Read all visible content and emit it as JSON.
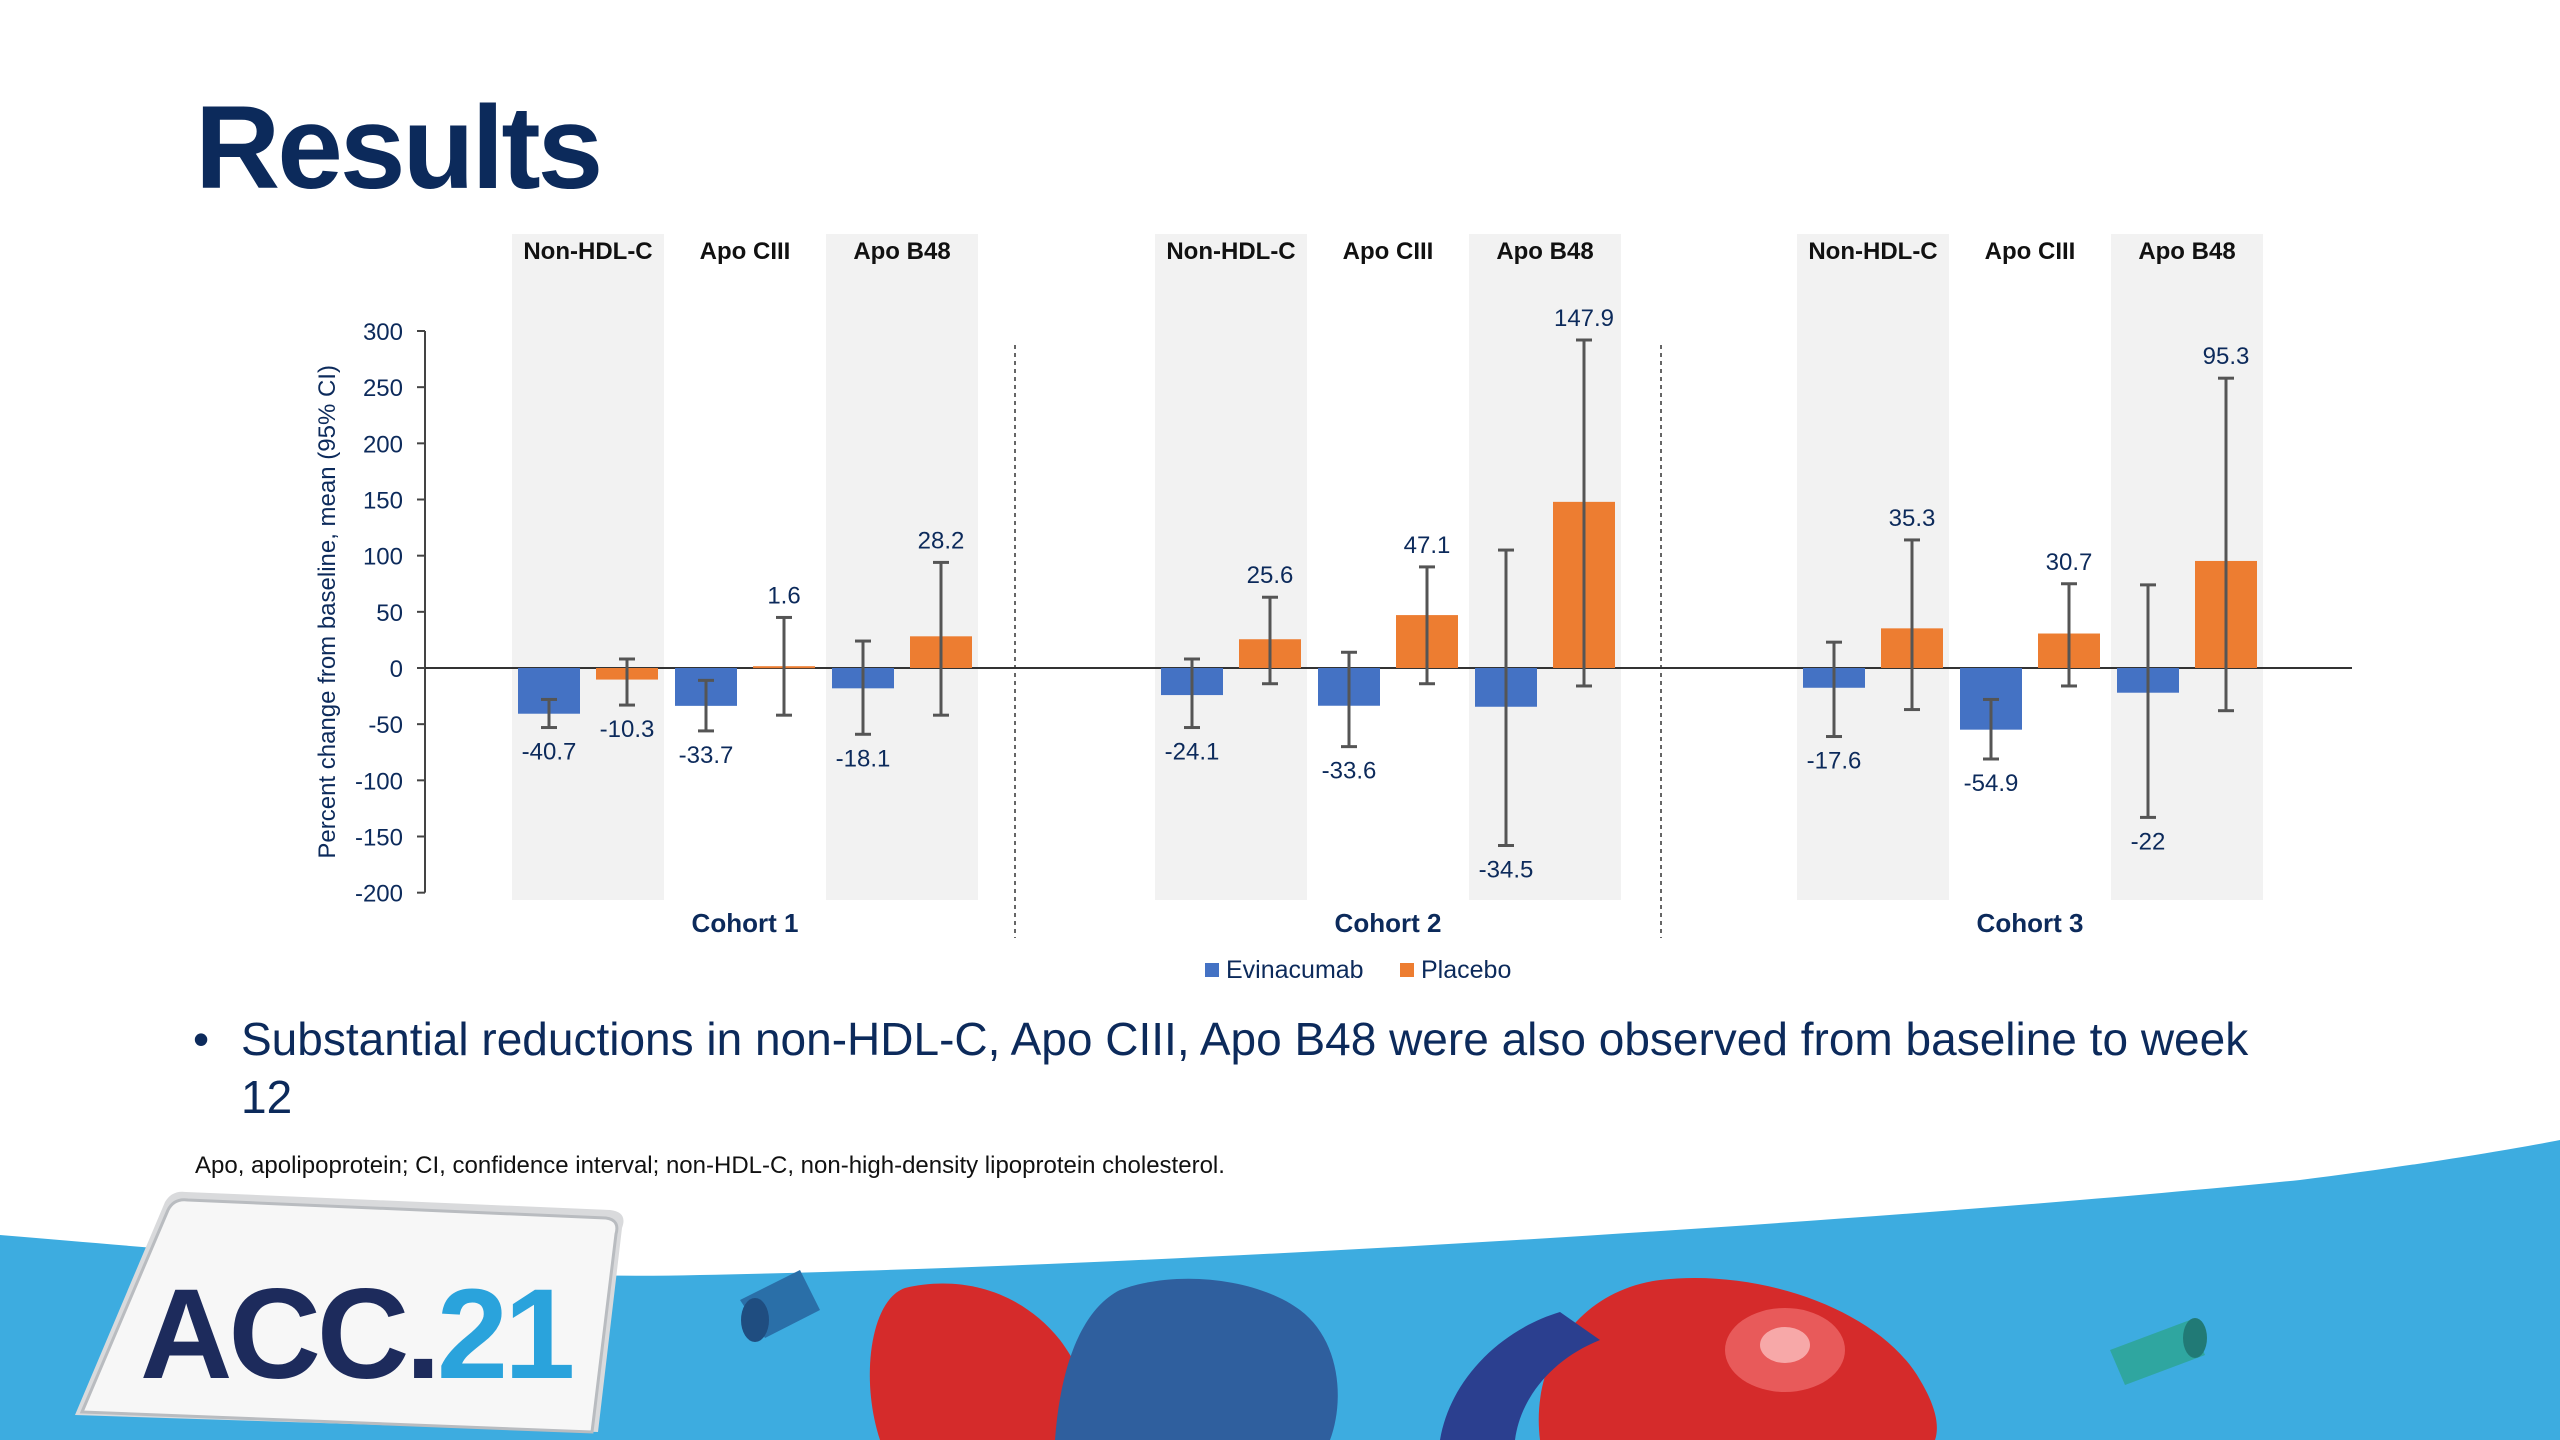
{
  "title": "Results",
  "chart_data": {
    "type": "bar",
    "ylabel": "Percent change from baseline, mean (95% CI)",
    "ylim": [
      -200,
      300
    ],
    "yticks": [
      300,
      250,
      200,
      150,
      100,
      50,
      0,
      -50,
      -100,
      -150,
      -200
    ],
    "legend": [
      {
        "name": "Evinacumab",
        "color": "#4472c4"
      },
      {
        "name": "Placebo",
        "color": "#ed7d31"
      }
    ],
    "cohorts": [
      {
        "name": "Cohort 1",
        "categories": [
          "Non-HDL-C",
          "Apo CIII",
          "Apo B48"
        ],
        "evinacumab": [
          -40.7,
          -33.7,
          -18.1
        ],
        "evinacumab_labels": [
          "-40.7",
          "-33.7",
          "-18.1"
        ],
        "evinacumab_ci": [
          [
            -53,
            -28
          ],
          [
            -56,
            -11
          ],
          [
            -59,
            24
          ]
        ],
        "placebo": [
          -10.3,
          1.6,
          28.2
        ],
        "placebo_labels": [
          "-10.3",
          "1.6",
          "28.2"
        ],
        "placebo_ci": [
          [
            -33,
            8
          ],
          [
            -42,
            45
          ],
          [
            -42,
            94
          ]
        ]
      },
      {
        "name": "Cohort 2",
        "categories": [
          "Non-HDL-C",
          "Apo CIII",
          "Apo B48"
        ],
        "evinacumab": [
          -24.1,
          -33.6,
          -34.5
        ],
        "evinacumab_labels": [
          "-24.1",
          "-33.6",
          "-34.5"
        ],
        "evinacumab_ci": [
          [
            -53,
            8
          ],
          [
            -70,
            14
          ],
          [
            -158,
            105
          ]
        ],
        "placebo": [
          25.6,
          47.1,
          147.9
        ],
        "placebo_labels": [
          "25.6",
          "47.1",
          "147.9"
        ],
        "placebo_ci": [
          [
            -14,
            63
          ],
          [
            -14,
            90
          ],
          [
            -16,
            292
          ]
        ]
      },
      {
        "name": "Cohort 3",
        "categories": [
          "Non-HDL-C",
          "Apo CIII",
          "Apo B48"
        ],
        "evinacumab": [
          -17.6,
          -54.9,
          -22.0
        ],
        "evinacumab_labels": [
          "-17.6",
          "-54.9",
          "-22"
        ],
        "evinacumab_ci": [
          [
            -61,
            23
          ],
          [
            -81,
            -28
          ],
          [
            -133,
            74
          ]
        ],
        "placebo": [
          35.3,
          30.7,
          95.3
        ],
        "placebo_labels": [
          "35.3",
          "30.7",
          "95.3"
        ],
        "placebo_ci": [
          [
            -37,
            114
          ],
          [
            -16,
            75
          ],
          [
            -38,
            258
          ]
        ]
      }
    ]
  },
  "bullet": "Substantial reductions in non-HDL-C, Apo CIII, Apo B48 were also observed from baseline to week 12",
  "footnote": "Apo, apolipoprotein; CI, confidence interval; non-HDL-C, non-high-density lipoprotein cholesterol.",
  "logo": {
    "prefix": "ACC.",
    "suffix": "21"
  },
  "colors": {
    "navy": "#0c2a5b",
    "blue": "#4472c4",
    "orange": "#ed7d31",
    "sky": "#3dace0",
    "red": "#d52b2b"
  }
}
